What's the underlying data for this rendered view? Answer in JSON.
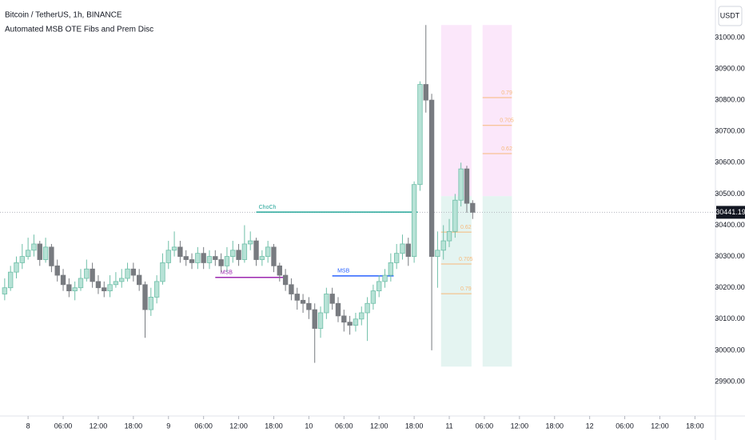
{
  "chart_data": {
    "type": "candlestick",
    "title": "Bitcoin / TetherUS, 1h, BINANCE",
    "subtitle": "Automated MSB OTE Fibs and Prem Disc",
    "currency": "USDT",
    "up_color": "#b7e2d6",
    "up_border": "#6fbfa8",
    "down_color": "#787b80",
    "x": [
      -4,
      -3,
      -2,
      -1,
      0,
      1,
      2,
      3,
      4,
      5,
      6,
      7,
      8,
      9,
      10,
      11,
      12,
      13,
      14,
      15,
      16,
      17,
      18,
      19,
      20,
      21,
      22,
      23,
      24,
      25,
      26,
      27,
      28,
      29,
      30,
      31,
      32,
      33,
      34,
      35,
      36,
      37,
      38,
      39,
      40,
      41,
      42,
      43,
      44,
      45,
      46,
      47,
      48,
      49,
      50,
      51,
      52,
      53,
      54,
      55,
      56,
      57,
      58,
      59,
      60,
      61,
      62,
      63,
      64,
      65,
      66,
      67,
      68,
      69,
      70,
      71,
      72,
      73,
      74,
      75,
      76
    ],
    "open": [
      30180,
      30200,
      30250,
      30280,
      30300,
      30320,
      30340,
      30290,
      30330,
      30270,
      30240,
      30210,
      30190,
      30200,
      30230,
      30260,
      30220,
      30200,
      30190,
      30210,
      30220,
      30230,
      30260,
      30240,
      30210,
      30130,
      30170,
      30220,
      30280,
      30320,
      30330,
      30300,
      30290,
      30280,
      30310,
      30280,
      30300,
      30290,
      30270,
      30300,
      30320,
      30290,
      30340,
      30350,
      30290,
      30300,
      30330,
      30270,
      30240,
      30210,
      30180,
      30160,
      30150,
      30130,
      30070,
      30120,
      30180,
      30150,
      30110,
      30090,
      30080,
      30100,
      30120,
      30150,
      30190,
      30220,
      30240,
      30280,
      30310,
      30340,
      30300,
      30530,
      30850,
      30800,
      30300,
      30320,
      30350,
      30380,
      30480,
      30580,
      30470
    ],
    "high": [
      30230,
      30270,
      30300,
      30340,
      30360,
      30370,
      30350,
      30360,
      30340,
      30290,
      30260,
      30230,
      30220,
      30260,
      30290,
      30280,
      30240,
      30220,
      30240,
      30250,
      30260,
      30280,
      30280,
      30260,
      30220,
      30200,
      30240,
      30310,
      30350,
      30380,
      30350,
      30320,
      30310,
      30330,
      30330,
      30320,
      30320,
      30310,
      30330,
      30350,
      30340,
      30400,
      30380,
      30360,
      30320,
      30350,
      30340,
      30280,
      30260,
      30230,
      30200,
      30180,
      30170,
      30150,
      30140,
      30200,
      30200,
      30170,
      30130,
      30110,
      30120,
      30140,
      30170,
      30210,
      30240,
      30260,
      30310,
      30340,
      30370,
      30360,
      30540,
      30860,
      31040,
      30820,
      30380,
      30400,
      30420,
      30500,
      30600,
      30590,
      30480
    ],
    "low": [
      30160,
      30190,
      30230,
      30260,
      30290,
      30300,
      30270,
      30280,
      30250,
      30220,
      30190,
      30170,
      30160,
      30190,
      30220,
      30200,
      30180,
      30170,
      30170,
      30200,
      30200,
      30220,
      30220,
      30190,
      30040,
      30110,
      30150,
      30210,
      30260,
      30300,
      30280,
      30270,
      30260,
      30260,
      30260,
      30260,
      30270,
      30250,
      30250,
      30280,
      30270,
      30280,
      30320,
      30270,
      30270,
      30280,
      30250,
      30220,
      30190,
      30160,
      30130,
      30120,
      30100,
      29960,
      30040,
      30100,
      30130,
      30090,
      30060,
      30050,
      30060,
      30080,
      30030,
      30130,
      30170,
      30200,
      30220,
      30260,
      30290,
      30270,
      30280,
      30510,
      30760,
      30000,
      30200,
      30290,
      30330,
      30360,
      30460,
      30440,
      30420
    ],
    "close": [
      30200,
      30250,
      30280,
      30300,
      30320,
      30340,
      30290,
      30330,
      30270,
      30240,
      30210,
      30190,
      30200,
      30230,
      30260,
      30220,
      30200,
      30190,
      30210,
      30220,
      30230,
      30260,
      30240,
      30210,
      30130,
      30170,
      30220,
      30280,
      30320,
      30330,
      30300,
      30290,
      30280,
      30310,
      30280,
      30300,
      30290,
      30270,
      30300,
      30320,
      30290,
      30340,
      30350,
      30290,
      30300,
      30330,
      30270,
      30240,
      30210,
      30180,
      30160,
      30150,
      30130,
      30070,
      30120,
      30180,
      30150,
      30110,
      30090,
      30080,
      30100,
      30120,
      30150,
      30190,
      30220,
      30240,
      30280,
      30310,
      30340,
      30300,
      30530,
      30850,
      30800,
      30300,
      30320,
      30350,
      30380,
      30480,
      30580,
      30470,
      30441.19
    ],
    "xlim": [
      -4.8,
      117.5
    ],
    "ylim": [
      29790,
      31120
    ],
    "xticks": [
      {
        "value": 0,
        "label": "8"
      },
      {
        "value": 6,
        "label": "06:00"
      },
      {
        "value": 12,
        "label": "12:00"
      },
      {
        "value": 18,
        "label": "18:00"
      },
      {
        "value": 24,
        "label": "9"
      },
      {
        "value": 30,
        "label": "06:00"
      },
      {
        "value": 36,
        "label": "12:00"
      },
      {
        "value": 42,
        "label": "18:00"
      },
      {
        "value": 48,
        "label": "10"
      },
      {
        "value": 54,
        "label": "06:00"
      },
      {
        "value": 60,
        "label": "12:00"
      },
      {
        "value": 66,
        "label": "18:00"
      },
      {
        "value": 72,
        "label": "11"
      },
      {
        "value": 78,
        "label": "06:00"
      },
      {
        "value": 84,
        "label": "12:00"
      },
      {
        "value": 90,
        "label": "18:00"
      },
      {
        "value": 96,
        "label": "12"
      },
      {
        "value": 102,
        "label": "06:00"
      },
      {
        "value": 108,
        "label": "12:00"
      },
      {
        "value": 114,
        "label": "18:00"
      }
    ],
    "yticks": [
      {
        "value": 29900,
        "label": "29900.00"
      },
      {
        "value": 30000,
        "label": "30000.00"
      },
      {
        "value": 30100,
        "label": "30100.00"
      },
      {
        "value": 30200,
        "label": "30200.00"
      },
      {
        "value": 30300,
        "label": "30300.00"
      },
      {
        "value": 30400,
        "label": "30400.00"
      },
      {
        "value": 30500,
        "label": "30500.00"
      },
      {
        "value": 30600,
        "label": "30600.00"
      },
      {
        "value": 30700,
        "label": "30700.00"
      },
      {
        "value": 30800,
        "label": "30800.00"
      },
      {
        "value": 30900,
        "label": "30900.00"
      },
      {
        "value": 31000,
        "label": "31000.00"
      }
    ],
    "zones": [
      {
        "x": [
          70.6,
          75.8
        ],
        "y": [
          30493,
          31040
        ],
        "color": "#fbe7fa"
      },
      {
        "x": [
          70.6,
          75.8
        ],
        "y": [
          29948,
          30493
        ],
        "color": "#e4f4f1"
      },
      {
        "x": [
          77.7,
          82.7
        ],
        "y": [
          30493,
          31040
        ],
        "color": "#fbe7fa"
      },
      {
        "x": [
          77.7,
          82.7
        ],
        "y": [
          29948,
          30493
        ],
        "color": "#e4f4f1"
      }
    ],
    "lines": [
      {
        "label": "MSB",
        "x": [
          32,
          44.4
        ],
        "y": 30233,
        "color": "#9c27b0"
      },
      {
        "label": "ChoCh",
        "x": [
          39,
          66.6
        ],
        "y": 30442,
        "color": "#26a69a"
      },
      {
        "label": "MSB",
        "x": [
          52,
          62.5
        ],
        "y": 30238,
        "color": "#2962ff"
      }
    ],
    "fibs": [
      {
        "label": "0.62",
        "x": [
          70.6,
          75.8
        ],
        "y": 30378
      },
      {
        "label": "0.705",
        "x": [
          70.6,
          75.8
        ],
        "y": 30276
      },
      {
        "label": "0.79",
        "x": [
          70.6,
          75.8
        ],
        "y": 30181
      },
      {
        "label": "0.79",
        "x": [
          77.7,
          82.7
        ],
        "y": 30808
      },
      {
        "label": "0.705",
        "x": [
          77.7,
          82.7
        ],
        "y": 30719
      },
      {
        "label": "0.62",
        "x": [
          77.7,
          82.7
        ],
        "y": 30629
      }
    ],
    "fib_color": "#f7b97a"
  }
}
